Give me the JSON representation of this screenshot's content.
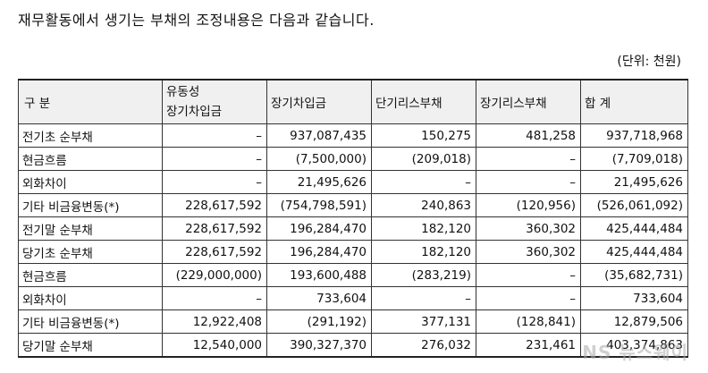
{
  "intro_text": "재무활동에서 생기는 부채의 조정내용은 다음과 같습니다.",
  "unit_text": "(단위: 천원)",
  "table": {
    "headers": {
      "category": "구   분",
      "col1_line1": "유동성",
      "col1_line2": "장기차입금",
      "col2": "장기차입금",
      "col3": "단기리스부채",
      "col4": "장기리스부채",
      "col5": "합 계"
    },
    "rows": [
      [
        "전기초 순부채",
        "–",
        "937,087,435",
        "150,275",
        "481,258",
        "937,718,968"
      ],
      [
        "현금흐름",
        "–",
        "(7,500,000)",
        "(209,018)",
        "–",
        "(7,709,018)"
      ],
      [
        "외화차이",
        "–",
        "21,495,626",
        "–",
        "–",
        "21,495,626"
      ],
      [
        "기타 비금융변동(*)",
        "228,617,592",
        "(754,798,591)",
        "240,863",
        "(120,956)",
        "(526,061,092)"
      ],
      [
        "전기말 순부채",
        "228,617,592",
        "196,284,470",
        "182,120",
        "360,302",
        "425,444,484"
      ],
      [
        "당기초 순부채",
        "228,617,592",
        "196,284,470",
        "182,120",
        "360,302",
        "425,444,484"
      ],
      [
        "현금흐름",
        "(229,000,000)",
        "193,600,488",
        "(283,219)",
        "–",
        "(35,682,731)"
      ],
      [
        "외화차이",
        "–",
        "733,604",
        "–",
        "–",
        "733,604"
      ],
      [
        "기타 비금융변동(*)",
        "12,922,408",
        "(291,192)",
        "377,131",
        "(128,841)",
        "12,879,506"
      ],
      [
        "당기말 순부채",
        "12,540,000",
        "390,327,370",
        "276,032",
        "231,461",
        "403,374,863"
      ]
    ]
  },
  "watermark": "NS 뉴스웨이"
}
